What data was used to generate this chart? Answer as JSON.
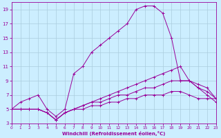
{
  "xlabel": "Windchill (Refroidissement éolien,°C)",
  "bg_color": "#cceeff",
  "line_color": "#990099",
  "grid_color": "#aaccdd",
  "xlim": [
    0,
    23
  ],
  "ylim": [
    3,
    20
  ],
  "xticks": [
    0,
    1,
    2,
    3,
    4,
    5,
    6,
    7,
    8,
    9,
    10,
    11,
    12,
    13,
    14,
    15,
    16,
    17,
    18,
    19,
    20,
    21,
    22,
    23
  ],
  "yticks": [
    3,
    5,
    7,
    9,
    11,
    13,
    15,
    17,
    19
  ],
  "lines": [
    {
      "x": [
        0,
        1,
        2,
        3,
        4,
        5,
        6,
        7,
        8,
        9,
        10,
        11,
        12,
        13,
        14,
        15,
        16,
        17,
        18,
        19,
        20,
        21,
        22,
        23
      ],
      "y": [
        5,
        6,
        6.5,
        7,
        5,
        4,
        5,
        10,
        11,
        13,
        14,
        15,
        16,
        17,
        19,
        19.5,
        19.5,
        18.5,
        15,
        9,
        9,
        8,
        7,
        6
      ]
    },
    {
      "x": [
        0,
        1,
        2,
        3,
        4,
        5,
        6,
        7,
        8,
        9,
        10,
        11,
        12,
        13,
        14,
        15,
        16,
        17,
        18,
        19,
        20,
        21,
        22,
        23
      ],
      "y": [
        5,
        5,
        5,
        5,
        4.5,
        3.5,
        4.5,
        5,
        5.5,
        6,
        6.5,
        7,
        7.5,
        8,
        8.5,
        9,
        9.5,
        10,
        10.5,
        11,
        9,
        8.5,
        8,
        6.5
      ]
    },
    {
      "x": [
        0,
        1,
        2,
        3,
        4,
        5,
        6,
        7,
        8,
        9,
        10,
        11,
        12,
        13,
        14,
        15,
        16,
        17,
        18,
        19,
        20,
        21,
        22,
        23
      ],
      "y": [
        5,
        5,
        5,
        5,
        4.5,
        3.5,
        4.5,
        5,
        5.5,
        6,
        6,
        6.5,
        7,
        7,
        7.5,
        8,
        8,
        8.5,
        9,
        9,
        9,
        8,
        7.5,
        6.5
      ]
    },
    {
      "x": [
        0,
        1,
        2,
        3,
        4,
        5,
        6,
        7,
        8,
        9,
        10,
        11,
        12,
        13,
        14,
        15,
        16,
        17,
        18,
        19,
        20,
        21,
        22,
        23
      ],
      "y": [
        5,
        5,
        5,
        5,
        4.5,
        3.5,
        4.5,
        5,
        5,
        5.5,
        5.5,
        6,
        6,
        6.5,
        6.5,
        7,
        7,
        7,
        7.5,
        7.5,
        7,
        6.5,
        6.5,
        6.5
      ]
    }
  ]
}
